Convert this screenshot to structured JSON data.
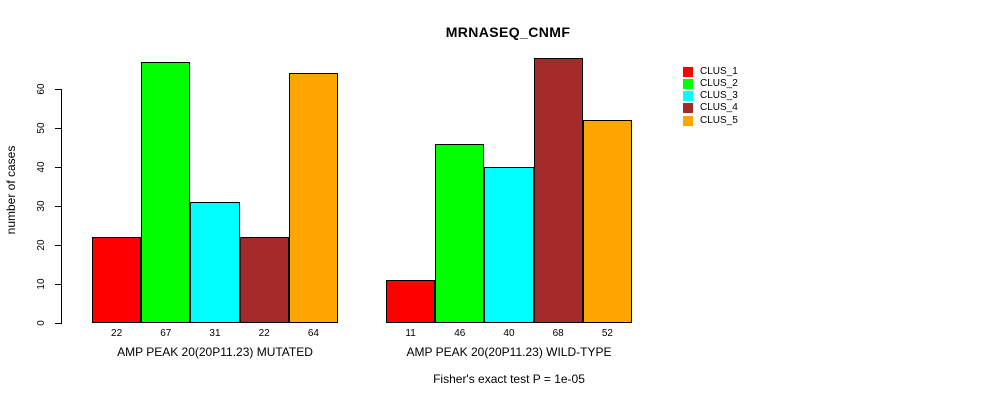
{
  "chart_data": {
    "type": "bar",
    "title": "MRNASEQ_CNMF",
    "ylabel": "number of cases",
    "xlabel": "",
    "ylim": [
      0,
      68
    ],
    "yticks": [
      0,
      10,
      20,
      30,
      40,
      50,
      60
    ],
    "grid": false,
    "legend_position": "right",
    "series": [
      "CLUS_1",
      "CLUS_2",
      "CLUS_3",
      "CLUS_4",
      "CLUS_5"
    ],
    "series_colors": [
      "#ff0000",
      "#00ff00",
      "#00ffff",
      "#a52a2a",
      "#ffa500"
    ],
    "groups": [
      {
        "label": "AMP PEAK 20(20P11.23) MUTATED",
        "values": [
          22,
          67,
          31,
          22,
          64
        ]
      },
      {
        "label": "AMP PEAK 20(20P11.23) WILD-TYPE",
        "values": [
          11,
          46,
          40,
          68,
          52
        ]
      }
    ],
    "annotation": "Fisher's exact test P = 1e-05",
    "colors": {
      "background": "#ffffff",
      "axis": "#000000",
      "text": "#000000",
      "bar_border": "#000000"
    }
  }
}
